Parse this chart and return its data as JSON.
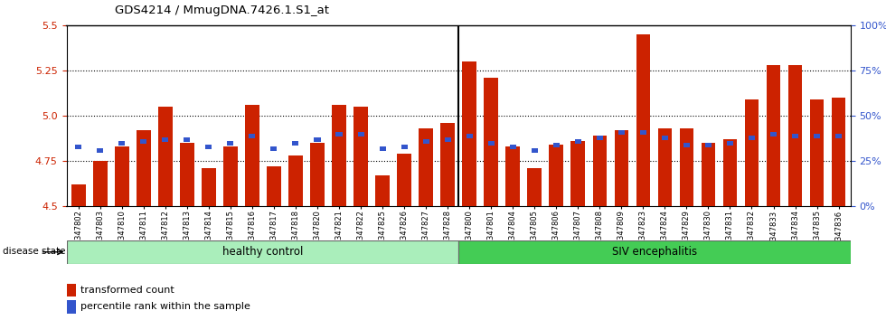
{
  "title": "GDS4214 / MmugDNA.7426.1.S1_at",
  "samples": [
    "GSM347802",
    "GSM347803",
    "GSM347810",
    "GSM347811",
    "GSM347812",
    "GSM347813",
    "GSM347814",
    "GSM347815",
    "GSM347816",
    "GSM347817",
    "GSM347818",
    "GSM347820",
    "GSM347821",
    "GSM347822",
    "GSM347825",
    "GSM347826",
    "GSM347827",
    "GSM347828",
    "GSM347800",
    "GSM347801",
    "GSM347804",
    "GSM347805",
    "GSM347806",
    "GSM347807",
    "GSM347808",
    "GSM347809",
    "GSM347823",
    "GSM347824",
    "GSM347829",
    "GSM347830",
    "GSM347831",
    "GSM347832",
    "GSM347833",
    "GSM347834",
    "GSM347835",
    "GSM347836"
  ],
  "red_values": [
    4.62,
    4.75,
    4.83,
    4.92,
    5.05,
    4.85,
    4.71,
    4.83,
    5.06,
    4.72,
    4.78,
    4.85,
    5.06,
    5.05,
    4.67,
    4.79,
    4.93,
    4.96,
    5.3,
    5.21,
    4.83,
    4.71,
    4.84,
    4.86,
    4.89,
    4.92,
    5.45,
    4.93,
    4.93,
    4.85,
    4.87,
    5.09,
    5.28,
    5.28,
    5.09,
    5.1
  ],
  "blue_values": [
    4.83,
    4.81,
    4.85,
    4.86,
    4.87,
    4.87,
    4.83,
    4.85,
    4.89,
    4.82,
    4.85,
    4.87,
    4.9,
    4.9,
    4.82,
    4.83,
    4.86,
    4.87,
    4.89,
    4.85,
    4.83,
    4.81,
    4.84,
    4.86,
    4.88,
    4.91,
    4.91,
    4.88,
    4.84,
    4.84,
    4.85,
    4.88,
    4.9,
    4.89,
    4.89,
    4.89
  ],
  "healthy_count": 18,
  "ylim_left": [
    4.5,
    5.5
  ],
  "ylim_right": [
    0,
    100
  ],
  "yticks_left": [
    4.5,
    4.75,
    5.0,
    5.25,
    5.5
  ],
  "yticks_right": [
    0,
    25,
    50,
    75,
    100
  ],
  "bar_color": "#cc2200",
  "blue_color": "#3355cc",
  "healthy_color": "#aaeebb",
  "siv_color": "#44cc55",
  "healthy_label": "healthy control",
  "siv_label": "SIV encephalitis",
  "legend_transformed": "transformed count",
  "legend_percentile": "percentile rank within the sample",
  "disease_state_label": "disease state"
}
